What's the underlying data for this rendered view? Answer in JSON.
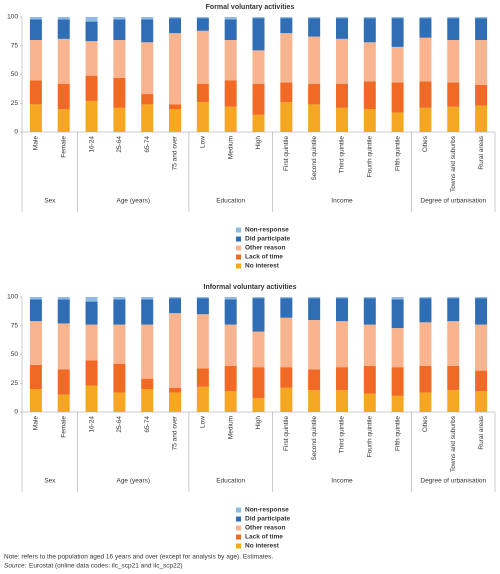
{
  "chart_data": [
    {
      "type": "stacked-bar",
      "title": "Formal voluntary activities",
      "groups": [
        {
          "name": "Sex",
          "categories": [
            "Male",
            "Female"
          ]
        },
        {
          "name": "Age (years)",
          "categories": [
            "16-24",
            "25-64",
            "65-74",
            "75 and over"
          ]
        },
        {
          "name": "Education",
          "categories": [
            "Low",
            "Medium",
            "High"
          ]
        },
        {
          "name": "Income",
          "categories": [
            "First quintile",
            "Second quintile",
            "Third quintile",
            "Fourth quintile",
            "Fifth quintile"
          ]
        },
        {
          "name": "Degree of urbanisation",
          "categories": [
            "Cities",
            "Towns and suburbs",
            "Rural areas"
          ]
        }
      ],
      "series": [
        {
          "name": "No interest",
          "color": "#f5a623",
          "values": [
            24,
            20,
            27,
            21,
            24,
            20,
            26,
            22,
            15,
            26,
            24,
            21,
            20,
            17,
            21,
            22,
            23
          ]
        },
        {
          "name": "Lack of time",
          "color": "#f06a25",
          "values": [
            21,
            22,
            22,
            26,
            9,
            4,
            16,
            23,
            27,
            17,
            18,
            21,
            24,
            26,
            23,
            21,
            18
          ]
        },
        {
          "name": "Other reason",
          "color": "#f7b48e",
          "values": [
            35,
            39,
            30,
            33,
            45,
            62,
            46,
            35,
            29,
            43,
            41,
            39,
            34,
            31,
            38,
            37,
            39
          ]
        },
        {
          "name": "Did participate",
          "color": "#2f6db5",
          "values": [
            18,
            17,
            17,
            18,
            20,
            13,
            11,
            18,
            28,
            13,
            16,
            18,
            21,
            25,
            17,
            19,
            19
          ]
        },
        {
          "name": "Non-response",
          "color": "#8dbbe3",
          "values": [
            2,
            2,
            4,
            2,
            2,
            1,
            1,
            2,
            1,
            1,
            1,
            1,
            1,
            1,
            1,
            1,
            1
          ]
        }
      ],
      "ylim": [
        0,
        100
      ],
      "yticks": [
        0,
        25,
        50,
        75,
        100
      ],
      "grid": false
    },
    {
      "type": "stacked-bar",
      "title": "Informal voluntary activities",
      "groups": [
        {
          "name": "Sex",
          "categories": [
            "Male",
            "Female"
          ]
        },
        {
          "name": "Age (years)",
          "categories": [
            "16-24",
            "25-64",
            "65-74",
            "75 and over"
          ]
        },
        {
          "name": "Education",
          "categories": [
            "Low",
            "Medium",
            "High"
          ]
        },
        {
          "name": "Income",
          "categories": [
            "First quintile",
            "Second quintile",
            "Third quintile",
            "Fourth quintile",
            "Fifth quintile"
          ]
        },
        {
          "name": "Degree of urbanisation",
          "categories": [
            "Cities",
            "Towns and suburbs",
            "Rural areas"
          ]
        }
      ],
      "series": [
        {
          "name": "No interest",
          "color": "#f5a623",
          "values": [
            20,
            15,
            23,
            17,
            20,
            17,
            22,
            18,
            12,
            21,
            19,
            19,
            16,
            14,
            17,
            19,
            18
          ]
        },
        {
          "name": "Lack of time",
          "color": "#f06a25",
          "values": [
            21,
            22,
            22,
            25,
            9,
            4,
            16,
            22,
            27,
            18,
            18,
            20,
            24,
            25,
            23,
            21,
            18
          ]
        },
        {
          "name": "Other reason",
          "color": "#f7b48e",
          "values": [
            38,
            40,
            31,
            34,
            47,
            65,
            47,
            36,
            31,
            43,
            43,
            40,
            36,
            34,
            38,
            39,
            40
          ]
        },
        {
          "name": "Did participate",
          "color": "#2f6db5",
          "values": [
            19,
            21,
            20,
            22,
            22,
            13,
            14,
            22,
            29,
            17,
            19,
            20,
            23,
            25,
            21,
            20,
            23
          ]
        },
        {
          "name": "Non-response",
          "color": "#8dbbe3",
          "values": [
            2,
            2,
            4,
            2,
            2,
            1,
            1,
            2,
            1,
            1,
            1,
            1,
            1,
            2,
            1,
            1,
            1
          ]
        }
      ],
      "ylim": [
        0,
        100
      ],
      "yticks": [
        0,
        25,
        50,
        75,
        100
      ],
      "grid": false
    }
  ],
  "notes": {
    "note": "Note: refers to the population aged 16 years and over (except for analysis by age). Estimates.",
    "source_label": "Source:",
    "source_text": "Eurostat (online data codes: ilc_scp21 and ilc_scp22)"
  }
}
